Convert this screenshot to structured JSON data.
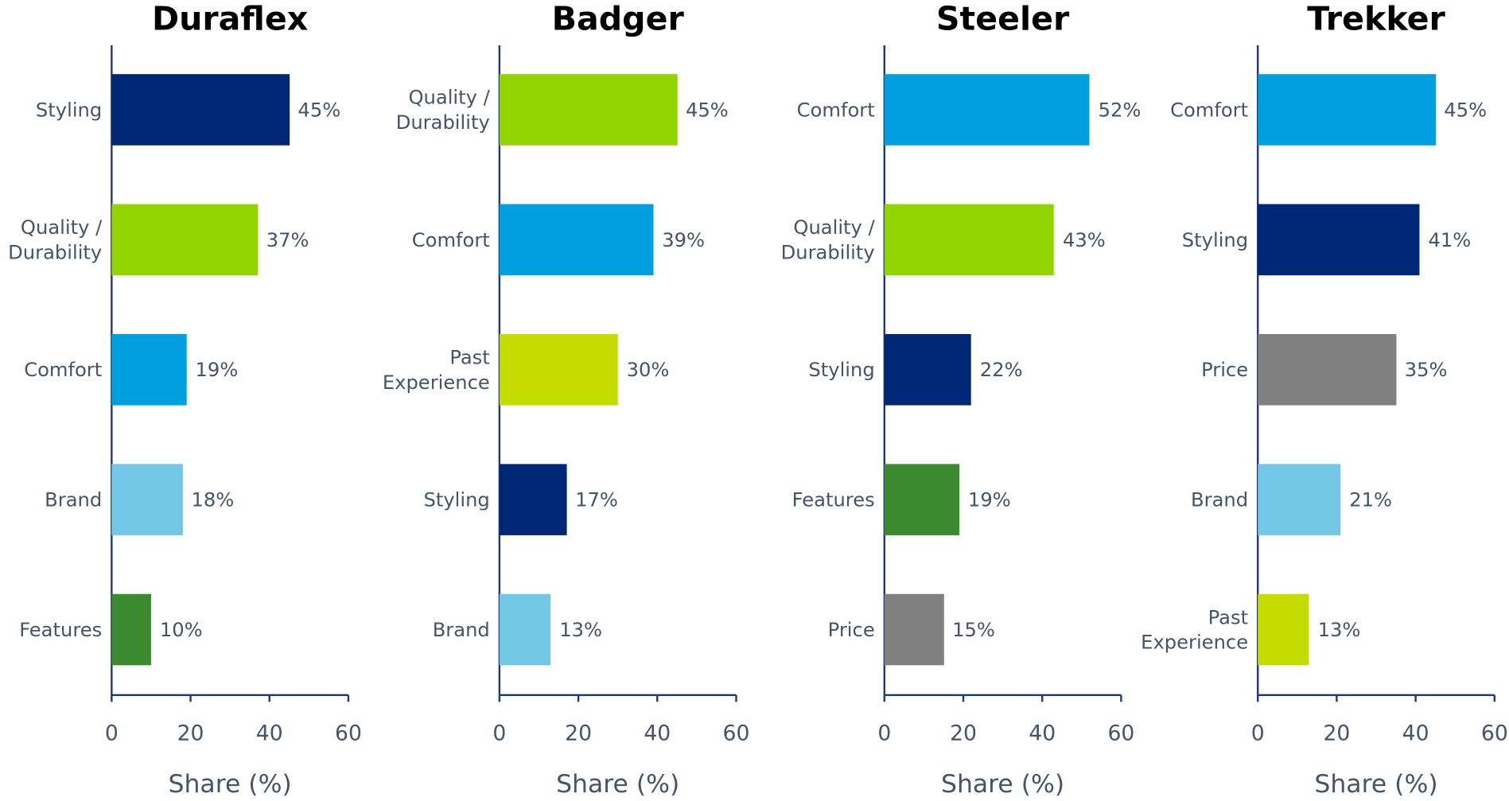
{
  "chart_data": [
    {
      "type": "bar",
      "title": "Duraflex",
      "xlabel": "Share (%)",
      "categories": [
        "Styling",
        "Quality / Durability",
        "Comfort",
        "Brand",
        "Features"
      ],
      "values": [
        45,
        37,
        19,
        18,
        10
      ],
      "value_labels": [
        "45%",
        "37%",
        "19%",
        "18%",
        "10%"
      ],
      "colors": [
        "#002776",
        "#92d400",
        "#00a0e0",
        "#72c7e7",
        "#3b8a2e"
      ],
      "xlim": [
        0,
        60
      ],
      "xticks": [
        0,
        20,
        40,
        60
      ]
    },
    {
      "type": "bar",
      "title": "Badger",
      "xlabel": "Share (%)",
      "categories": [
        "Quality / Durability",
        "Comfort",
        "Past Experience",
        "Styling",
        "Brand"
      ],
      "values": [
        45,
        39,
        30,
        17,
        13
      ],
      "value_labels": [
        "45%",
        "39%",
        "30%",
        "17%",
        "13%"
      ],
      "colors": [
        "#92d400",
        "#00a0e0",
        "#c5dc00",
        "#002776",
        "#72c7e7"
      ],
      "xlim": [
        0,
        60
      ],
      "xticks": [
        0,
        20,
        40,
        60
      ]
    },
    {
      "type": "bar",
      "title": "Steeler",
      "xlabel": "Share (%)",
      "categories": [
        "Comfort",
        "Quality / Durability",
        "Styling",
        "Features",
        "Price"
      ],
      "values": [
        52,
        43,
        22,
        19,
        15
      ],
      "value_labels": [
        "52%",
        "43%",
        "22%",
        "19%",
        "15%"
      ],
      "colors": [
        "#00a0e0",
        "#92d400",
        "#002776",
        "#3b8a2e",
        "#808080"
      ],
      "xlim": [
        0,
        60
      ],
      "xticks": [
        0,
        20,
        40,
        60
      ]
    },
    {
      "type": "bar",
      "title": "Trekker",
      "xlabel": "Share (%)",
      "categories": [
        "Comfort",
        "Styling",
        "Price",
        "Brand",
        "Past Experience"
      ],
      "values": [
        45,
        41,
        35,
        21,
        13
      ],
      "value_labels": [
        "45%",
        "41%",
        "35%",
        "21%",
        "13%"
      ],
      "colors": [
        "#00a0e0",
        "#002776",
        "#808080",
        "#72c7e7",
        "#c5dc00"
      ],
      "xlim": [
        0,
        60
      ],
      "xticks": [
        0,
        20,
        40,
        60
      ]
    }
  ]
}
